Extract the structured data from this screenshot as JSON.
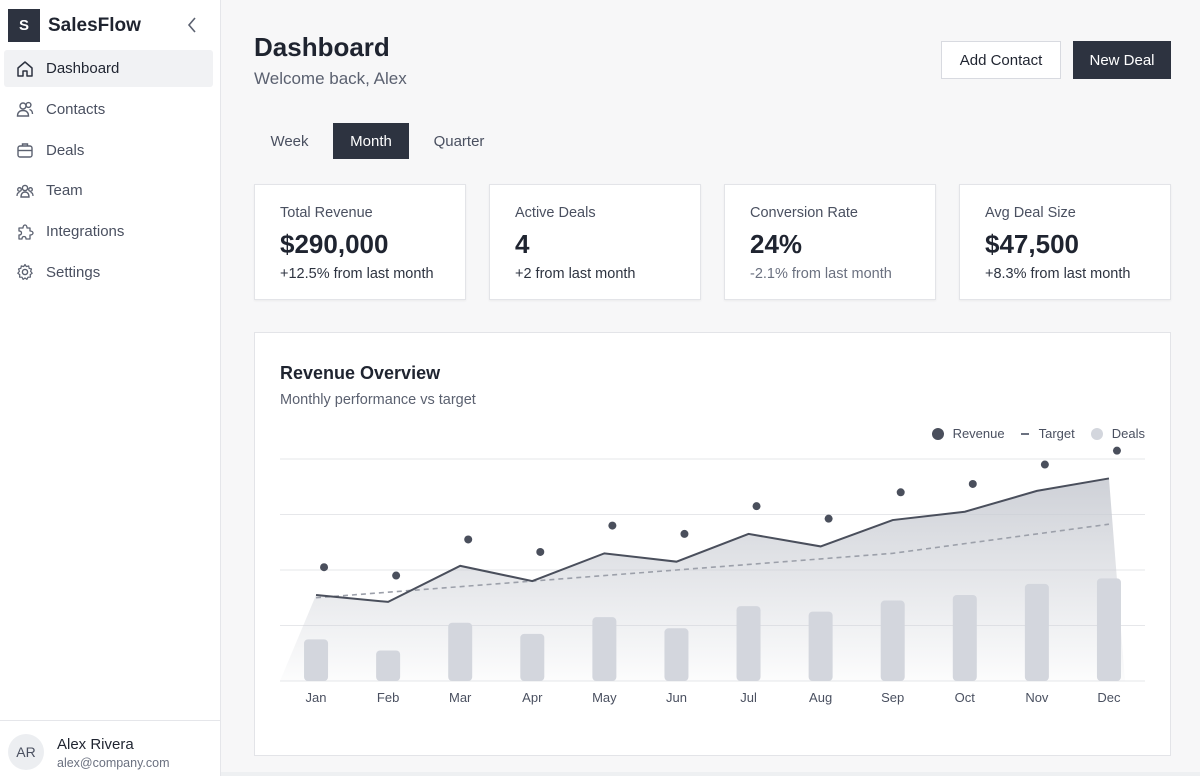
{
  "app": {
    "name": "SalesFlow",
    "logo_letter": "S"
  },
  "sidebar": {
    "items": [
      {
        "label": "Dashboard",
        "icon": "home-icon",
        "active": true
      },
      {
        "label": "Contacts",
        "icon": "users-icon",
        "active": false
      },
      {
        "label": "Deals",
        "icon": "briefcase-icon",
        "active": false
      },
      {
        "label": "Team",
        "icon": "team-icon",
        "active": false
      },
      {
        "label": "Integrations",
        "icon": "puzzle-icon",
        "active": false
      },
      {
        "label": "Settings",
        "icon": "gear-icon",
        "active": false
      }
    ],
    "user": {
      "initials": "AR",
      "name": "Alex Rivera",
      "email": "alex@company.com"
    }
  },
  "header": {
    "title": "Dashboard",
    "subtitle": "Welcome back, Alex",
    "add_contact_label": "Add Contact",
    "new_deal_label": "New Deal"
  },
  "period_tabs": {
    "items": [
      "Week",
      "Month",
      "Quarter"
    ],
    "selected": "Month"
  },
  "stats": [
    {
      "label": "Total Revenue",
      "value": "$290,000",
      "delta": "+12.5% from last month"
    },
    {
      "label": "Active Deals",
      "value": "4",
      "delta": "+2 from last month"
    },
    {
      "label": "Conversion Rate",
      "value": "24%",
      "delta": "-2.1% from last month"
    },
    {
      "label": "Avg Deal Size",
      "value": "$47,500",
      "delta": "+8.3% from last month"
    }
  ],
  "colors": {
    "accent": "#2d3340",
    "revenue": "#4a4f5c",
    "target": "#9ca0aa",
    "deals": "#d3d6dd",
    "area": "#c9ccd3"
  },
  "chart_data": {
    "type": "line",
    "title": "Revenue Overview",
    "subtitle": "Monthly performance vs target",
    "categories": [
      "Jan",
      "Feb",
      "Mar",
      "Apr",
      "May",
      "Jun",
      "Jul",
      "Aug",
      "Sep",
      "Oct",
      "Nov",
      "Dec"
    ],
    "series": [
      {
        "name": "Revenue",
        "kind": "line",
        "values": [
          31,
          28.5,
          41.5,
          36,
          46,
          43,
          53,
          48.5,
          58,
          61,
          68.5,
          73
        ]
      },
      {
        "name": "Target",
        "kind": "dashed-line",
        "values": [
          30,
          32,
          34,
          36,
          38,
          40,
          42,
          44,
          46,
          49.5,
          53,
          56.5
        ]
      },
      {
        "name": "Deals",
        "kind": "bar",
        "values": [
          15,
          11,
          21,
          17,
          23,
          19,
          27,
          25,
          29,
          31,
          35,
          37
        ]
      },
      {
        "name": "Dots",
        "kind": "scatter",
        "values": [
          41,
          38,
          51,
          46.5,
          56,
          53,
          63,
          58.5,
          68,
          71,
          78,
          83
        ]
      }
    ],
    "ylim": [
      0,
      80
    ],
    "grid": true,
    "legend": "top-right"
  }
}
